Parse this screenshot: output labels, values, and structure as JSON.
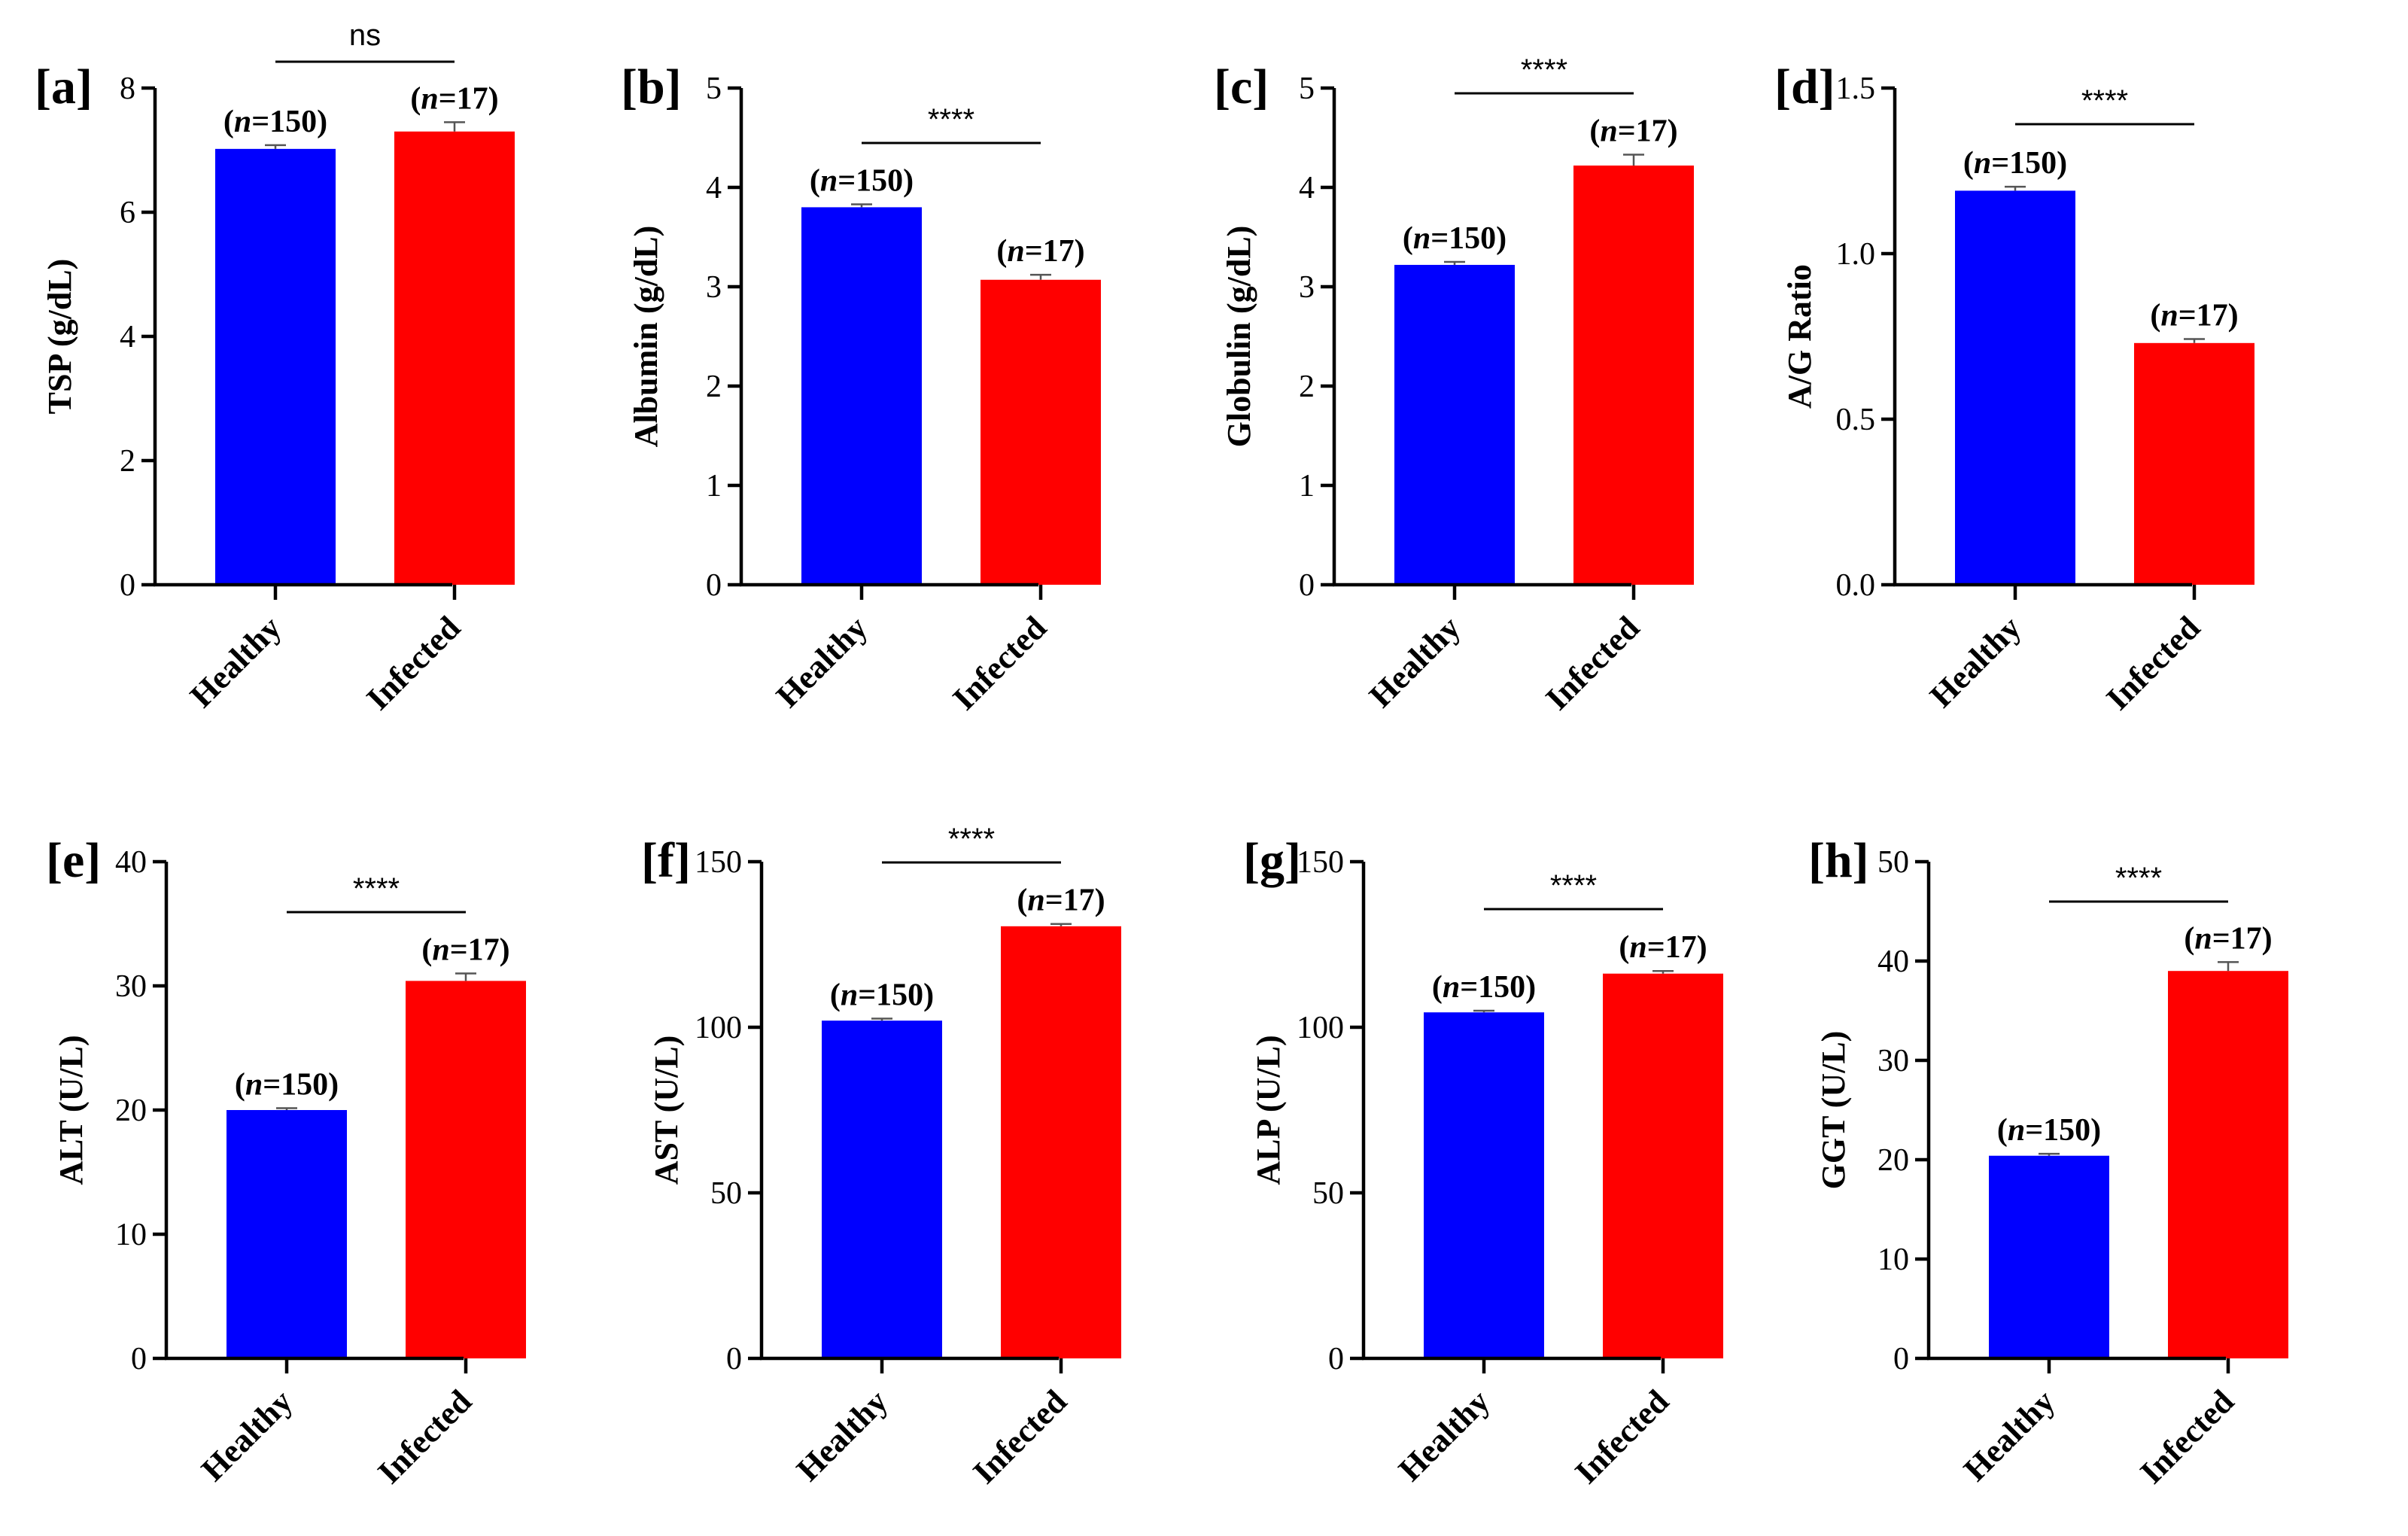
{
  "colors": {
    "healthy": "#0000ff",
    "infected": "#ff0000"
  },
  "chart_data": [
    {
      "type": "bar",
      "panel": "[a]",
      "ylabel": "TSP (g/dL)",
      "ylim": [
        0,
        8
      ],
      "yticks": [
        "0",
        "2",
        "4",
        "6",
        "8"
      ],
      "categories": [
        "Healthy",
        "Infected"
      ],
      "values": [
        7.02,
        7.3
      ],
      "errors": [
        0.06,
        0.15
      ],
      "n_labels": [
        "(n=150)",
        "(n=17)"
      ],
      "significance": "ns"
    },
    {
      "type": "bar",
      "panel": "[b]",
      "ylabel": "Albumin (g/dL)",
      "ylim": [
        0,
        5
      ],
      "yticks": [
        "0",
        "1",
        "2",
        "3",
        "4",
        "5"
      ],
      "categories": [
        "Healthy",
        "Infected"
      ],
      "values": [
        3.8,
        3.07
      ],
      "errors": [
        0.03,
        0.05
      ],
      "n_labels": [
        "(n=150)",
        "(n=17)"
      ],
      "significance": "****"
    },
    {
      "type": "bar",
      "panel": "[c]",
      "ylabel": "Globulin (g/dL)",
      "ylim": [
        0,
        5
      ],
      "yticks": [
        "0",
        "1",
        "2",
        "3",
        "4",
        "5"
      ],
      "categories": [
        "Healthy",
        "Infected"
      ],
      "values": [
        3.22,
        4.22
      ],
      "errors": [
        0.03,
        0.11
      ],
      "n_labels": [
        "(n=150)",
        "(n=17)"
      ],
      "significance": "****"
    },
    {
      "type": "bar",
      "panel": "[d]",
      "ylabel": "A/G Ratio",
      "ylim": [
        0,
        1.5
      ],
      "yticks": [
        "0.0",
        "0.5",
        "1.0",
        "1.5"
      ],
      "categories": [
        "Healthy",
        "Infected"
      ],
      "values": [
        1.19,
        0.73
      ],
      "errors": [
        0.012,
        0.012
      ],
      "n_labels": [
        "(n=150)",
        "(n=17)"
      ],
      "significance": "****"
    },
    {
      "type": "bar",
      "panel": "[e]",
      "ylabel": "ALT (U/L)",
      "ylim": [
        0,
        40
      ],
      "yticks": [
        "0",
        "10",
        "20",
        "30",
        "40"
      ],
      "categories": [
        "Healthy",
        "Infected"
      ],
      "values": [
        20.0,
        30.4
      ],
      "errors": [
        0.15,
        0.6
      ],
      "n_labels": [
        "(n=150)",
        "(n=17)"
      ],
      "significance": "****"
    },
    {
      "type": "bar",
      "panel": "[f]",
      "ylabel": "AST (U/L)",
      "ylim": [
        0,
        150
      ],
      "yticks": [
        "0",
        "50",
        "100",
        "150"
      ],
      "categories": [
        "Healthy",
        "Infected"
      ],
      "values": [
        102,
        130.5
      ],
      "errors": [
        0.6,
        0.7
      ],
      "n_labels": [
        "(n=150)",
        "(n=17)"
      ],
      "significance": "****"
    },
    {
      "type": "bar",
      "panel": "[g]",
      "ylabel": "ALP (U/L)",
      "ylim": [
        0,
        150
      ],
      "yticks": [
        "0",
        "50",
        "100",
        "150"
      ],
      "categories": [
        "Healthy",
        "Infected"
      ],
      "values": [
        104.5,
        116.2
      ],
      "errors": [
        0.5,
        0.8
      ],
      "n_labels": [
        "(n=150)",
        "(n=17)"
      ],
      "significance": "****"
    },
    {
      "type": "bar",
      "panel": "[h]",
      "ylabel": "GGT (U/L)",
      "ylim": [
        0,
        50
      ],
      "yticks": [
        "0",
        "10",
        "20",
        "30",
        "40",
        "50"
      ],
      "categories": [
        "Healthy",
        "Infected"
      ],
      "values": [
        20.4,
        39.0
      ],
      "errors": [
        0.2,
        0.9
      ],
      "n_labels": [
        "(n=150)",
        "(n=17)"
      ],
      "significance": "****"
    }
  ]
}
